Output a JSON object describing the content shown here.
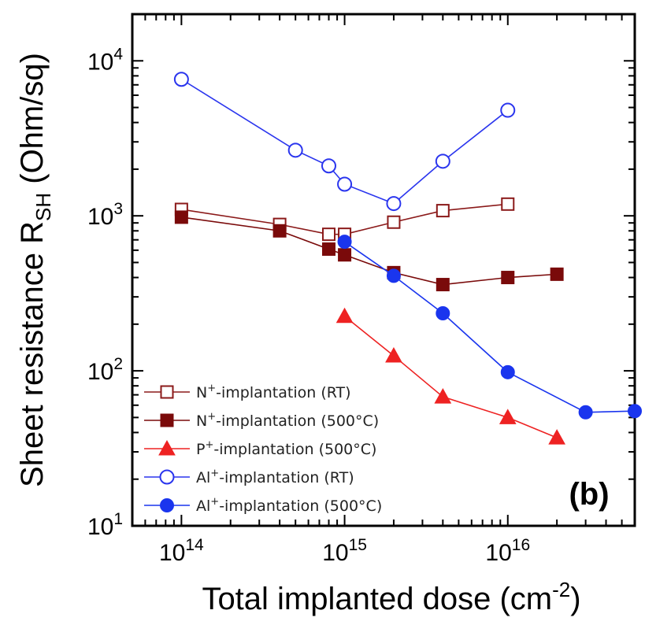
{
  "chart_data": {
    "type": "scatter",
    "x_scale": "log",
    "y_scale": "log",
    "xlim": [
      50000000000000.0,
      6e+16
    ],
    "ylim": [
      10,
      20000
    ],
    "xlabel": {
      "prefix": "Total implanted dose (cm",
      "sup": "-2",
      "suffix": ")"
    },
    "ylabel": {
      "prefix": "Sheet resistance R",
      "sub": "SH",
      "suffix": " (Ohm/sq)"
    },
    "panel_label": "(b)",
    "x_ticks": [
      {
        "value": 100000000000000.0,
        "base": "10",
        "exp": "14"
      },
      {
        "value": 1000000000000000.0,
        "base": "10",
        "exp": "15"
      },
      {
        "value": 1e+16,
        "base": "10",
        "exp": "16"
      }
    ],
    "y_ticks": [
      {
        "value": 10,
        "base": "10",
        "exp": "1"
      },
      {
        "value": 100,
        "base": "10",
        "exp": "2"
      },
      {
        "value": 1000,
        "base": "10",
        "exp": "3"
      },
      {
        "value": 10000,
        "base": "10",
        "exp": "4"
      }
    ],
    "legend_position": "bottom-left",
    "series": [
      {
        "name": "N+ implantation (RT)",
        "label_parts": [
          "N",
          "+",
          "-implantation (RT)"
        ],
        "color": "#8b1a1a",
        "marker": "square-open",
        "x": [
          100000000000000.0,
          400000000000000.0,
          800000000000000.0,
          1000000000000000.0,
          2000000000000000.0,
          4000000000000000.0,
          1e+16
        ],
        "y": [
          1100,
          880,
          760,
          760,
          910,
          1080,
          1190
        ]
      },
      {
        "name": "N+ implantation (500°C)",
        "label_parts": [
          "N",
          "+",
          "-implantation (500°C)"
        ],
        "color": "#7a0a0a",
        "marker": "square-filled",
        "x": [
          100000000000000.0,
          400000000000000.0,
          800000000000000.0,
          1000000000000000.0,
          2000000000000000.0,
          4000000000000000.0,
          1e+16,
          2e+16
        ],
        "y": [
          980,
          800,
          610,
          560,
          430,
          360,
          400,
          420
        ]
      },
      {
        "name": "P+ implantation (500°C)",
        "label_parts": [
          "P",
          "+",
          "-implantation (500°C)"
        ],
        "color": "#ee2222",
        "marker": "triangle-filled",
        "x": [
          1000000000000000.0,
          2000000000000000.0,
          4000000000000000.0,
          1e+16,
          2e+16
        ],
        "y": [
          225,
          125,
          68,
          50,
          37
        ]
      },
      {
        "name": "Al+ implantation (RT)",
        "label_parts": [
          "Al",
          "+",
          "-implantation (RT)"
        ],
        "color": "#2a35ee",
        "marker": "circle-open",
        "x": [
          100000000000000.0,
          500000000000000.0,
          800000000000000.0,
          1000000000000000.0,
          2000000000000000.0,
          4000000000000000.0,
          1e+16
        ],
        "y": [
          7600,
          2650,
          2100,
          1600,
          1200,
          2250,
          4800
        ]
      },
      {
        "name": "Al+ implantation (500°C)",
        "label_parts": [
          "Al",
          "+",
          "-implantation (500°C)"
        ],
        "color": "#1a35ee",
        "marker": "circle-filled",
        "x": [
          1000000000000000.0,
          2000000000000000.0,
          4000000000000000.0,
          1e+16,
          3e+16,
          6e+16
        ],
        "y": [
          680,
          410,
          235,
          98,
          54,
          55
        ]
      }
    ]
  }
}
